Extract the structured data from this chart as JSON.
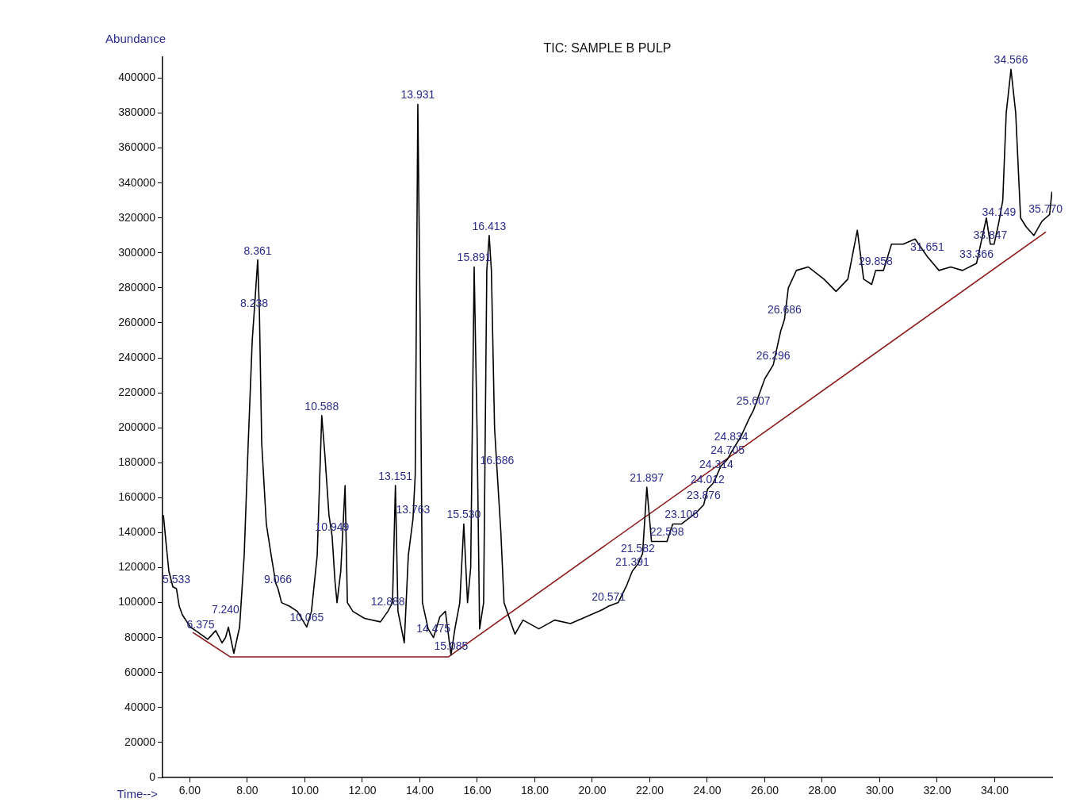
{
  "chart_data": {
    "type": "line",
    "title": "TIC: SAMPLE B PULP",
    "xlabel": "Time-->",
    "ylabel": "Abundance",
    "xlim": [
      5.05,
      36
    ],
    "ylim": [
      0,
      412000
    ],
    "xticks": [
      {
        "value": 6,
        "label": "6.00"
      },
      {
        "value": 8,
        "label": "8.00"
      },
      {
        "value": 10,
        "label": "10.00"
      },
      {
        "value": 12,
        "label": "12.00"
      },
      {
        "value": 14,
        "label": "14.00"
      },
      {
        "value": 16,
        "label": "16.00"
      },
      {
        "value": 18,
        "label": "18.00"
      },
      {
        "value": 20,
        "label": "20.00"
      },
      {
        "value": 22,
        "label": "22.00"
      },
      {
        "value": 24,
        "label": "24.00"
      },
      {
        "value": 26,
        "label": "26.00"
      },
      {
        "value": 28,
        "label": "28.00"
      },
      {
        "value": 30,
        "label": "30.00"
      },
      {
        "value": 32,
        "label": "32.00"
      },
      {
        "value": 34,
        "label": "34.00"
      }
    ],
    "yticks": [
      0,
      20000,
      40000,
      60000,
      80000,
      100000,
      120000,
      140000,
      160000,
      180000,
      200000,
      220000,
      240000,
      260000,
      280000,
      300000,
      320000,
      340000,
      360000,
      380000,
      400000
    ],
    "grid": false,
    "legend": false,
    "marker": "none",
    "series": [
      {
        "color": "#000000",
        "x": [
          5.08,
          5.19,
          5.27,
          5.41,
          5.533,
          5.63,
          5.74,
          6.02,
          6.2,
          6.375,
          6.62,
          6.9,
          7.12,
          7.24,
          7.34,
          7.53,
          7.73,
          7.89,
          8.03,
          8.17,
          8.238,
          8.361,
          8.42,
          8.5,
          8.66,
          8.83,
          8.99,
          9.066,
          9.19,
          9.46,
          9.74,
          10.065,
          10.23,
          10.43,
          10.588,
          10.7,
          10.84,
          10.949,
          11.05,
          11.12,
          11.25,
          11.4,
          11.48,
          11.67,
          12.08,
          12.63,
          12.888,
          13.05,
          13.151,
          13.24,
          13.46,
          13.6,
          13.763,
          13.84,
          13.931,
          14.01,
          14.09,
          14.29,
          14.475,
          14.7,
          14.89,
          15.085,
          15.22,
          15.39,
          15.53,
          15.66,
          15.77,
          15.891,
          15.99,
          16.08,
          16.22,
          16.33,
          16.413,
          16.49,
          16.6,
          16.686,
          16.82,
          16.93,
          17.18,
          17.31,
          17.59,
          18.14,
          18.69,
          19.24,
          19.8,
          20.35,
          20.571,
          20.9,
          21.2,
          21.391,
          21.582,
          21.75,
          21.897,
          22.06,
          22.41,
          22.598,
          22.8,
          23.106,
          23.65,
          23.876,
          24.012,
          24.19,
          24.314,
          24.47,
          24.705,
          24.834,
          25.17,
          25.45,
          25.607,
          26.0,
          26.296,
          26.55,
          26.686,
          26.82,
          27.1,
          27.51,
          28.06,
          28.48,
          28.89,
          29.22,
          29.44,
          29.72,
          29.858,
          30.13,
          30.41,
          30.82,
          31.23,
          31.651,
          32.06,
          32.47,
          32.88,
          33.366,
          33.71,
          33.847,
          33.98,
          34.149,
          34.28,
          34.4,
          34.566,
          34.73,
          34.9,
          35.09,
          35.36,
          35.64,
          35.77,
          35.91,
          35.99
        ],
        "values": [
          150000,
          131000,
          118000,
          109000,
          108000,
          98000,
          93000,
          86000,
          84000,
          82000,
          79000,
          84000,
          77000,
          80000,
          86000,
          71000,
          86000,
          127000,
          191000,
          250000,
          266000,
          296000,
          266000,
          191000,
          145000,
          127000,
          111000,
          108000,
          100000,
          98000,
          95000,
          86000,
          95000,
          127000,
          207000,
          184000,
          150000,
          138000,
          112000,
          100000,
          118000,
          167000,
          100000,
          95000,
          91000,
          89000,
          95000,
          100000,
          167000,
          95000,
          77000,
          127000,
          148000,
          173000,
          385000,
          263000,
          100000,
          85000,
          80000,
          92000,
          95000,
          70000,
          85000,
          100000,
          145000,
          100000,
          120000,
          292000,
          200000,
          85000,
          100000,
          290000,
          310000,
          290000,
          200000,
          176000,
          140000,
          100000,
          88000,
          82000,
          90000,
          85000,
          90000,
          88000,
          92000,
          96000,
          98000,
          100000,
          110000,
          118000,
          122000,
          128000,
          166000,
          135000,
          135000,
          135000,
          145000,
          145000,
          152000,
          156000,
          165000,
          168000,
          172000,
          178000,
          182000,
          186000,
          195000,
          205000,
          210000,
          228000,
          236000,
          255000,
          262000,
          280000,
          290000,
          292000,
          285000,
          278000,
          285000,
          313000,
          285000,
          282000,
          290000,
          290000,
          305000,
          305000,
          308000,
          298000,
          290000,
          292000,
          290000,
          294000,
          320000,
          305000,
          305000,
          318000,
          330000,
          380000,
          405000,
          380000,
          320000,
          315000,
          310000,
          318000,
          320000,
          322000,
          335000
        ]
      },
      {
        "color": "#8b1a1a",
        "x": [
          6.1,
          7.4,
          15.0,
          35.78
        ],
        "values": [
          83000,
          69000,
          69000,
          312000
        ]
      }
    ],
    "annotations": [
      {
        "text": "5.533",
        "x": 5.533,
        "y": 108000
      },
      {
        "text": "6.375",
        "x": 6.375,
        "y": 82000
      },
      {
        "text": "7.240",
        "x": 7.24,
        "y": 80000
      },
      {
        "text": "8.238",
        "x": 8.238,
        "y": 266000
      },
      {
        "text": "8.361",
        "x": 8.361,
        "y": 296000
      },
      {
        "text": "9.066",
        "x": 9.066,
        "y": 108000
      },
      {
        "text": "10.065",
        "x": 10.065,
        "y": 86000
      },
      {
        "text": "10.588",
        "x": 10.588,
        "y": 207000
      },
      {
        "text": "10.949",
        "x": 10.949,
        "y": 138000
      },
      {
        "text": "12.888",
        "x": 12.888,
        "y": 95000
      },
      {
        "text": "13.151",
        "x": 13.151,
        "y": 167000
      },
      {
        "text": "13.763",
        "x": 13.763,
        "y": 148000
      },
      {
        "text": "13.931",
        "x": 13.931,
        "y": 385000
      },
      {
        "text": "14.475",
        "x": 14.475,
        "y": 80000
      },
      {
        "text": "15.085",
        "x": 15.085,
        "y": 70000
      },
      {
        "text": "15.530",
        "x": 15.53,
        "y": 145000
      },
      {
        "text": "15.891",
        "x": 15.891,
        "y": 292000
      },
      {
        "text": "16.413",
        "x": 16.413,
        "y": 310000
      },
      {
        "text": "16.686",
        "x": 16.686,
        "y": 176000
      },
      {
        "text": "20.571",
        "x": 20.571,
        "y": 98000
      },
      {
        "text": "21.391",
        "x": 21.391,
        "y": 118000
      },
      {
        "text": "21.582",
        "x": 21.582,
        "y": 122000
      },
      {
        "text": "21.897",
        "x": 21.897,
        "y": 166000
      },
      {
        "text": "22.598",
        "x": 22.598,
        "y": 135000
      },
      {
        "text": "23.106",
        "x": 23.106,
        "y": 145000
      },
      {
        "text": "23.876",
        "x": 23.876,
        "y": 156000
      },
      {
        "text": "24.012",
        "x": 24.012,
        "y": 165000
      },
      {
        "text": "24.314",
        "x": 24.314,
        "y": 172000
      },
      {
        "text": "24.705",
        "x": 24.705,
        "y": 182000
      },
      {
        "text": "24.834",
        "x": 24.834,
        "y": 186000
      },
      {
        "text": "25.607",
        "x": 25.607,
        "y": 210000
      },
      {
        "text": "26.296",
        "x": 26.296,
        "y": 236000
      },
      {
        "text": "26.686",
        "x": 26.686,
        "y": 262000
      },
      {
        "text": "29.858",
        "x": 29.858,
        "y": 290000
      },
      {
        "text": "31.651",
        "x": 31.651,
        "y": 298000
      },
      {
        "text": "33.366",
        "x": 33.366,
        "y": 294000
      },
      {
        "text": "33.847",
        "x": 33.847,
        "y": 305000
      },
      {
        "text": "34.149",
        "x": 34.149,
        "y": 318000
      },
      {
        "text": "34.566",
        "x": 34.566,
        "y": 405000
      },
      {
        "text": "35.770",
        "x": 35.77,
        "y": 320000
      }
    ]
  }
}
